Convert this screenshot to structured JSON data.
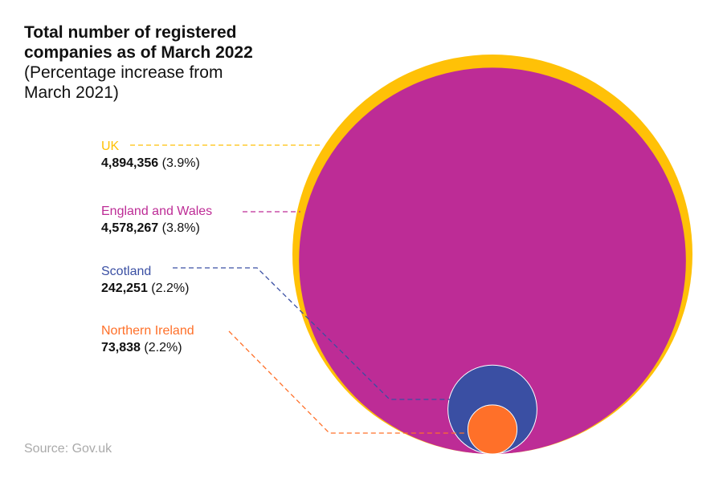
{
  "chart_data": {
    "type": "nested-circles",
    "title": "Total number of registered companies as of March 2022",
    "subtitle": "(Percentage increase from March 2021)",
    "source": "Source: Gov.uk",
    "categories": [
      "UK",
      "England and Wales",
      "Scotland",
      "Northern Ireland"
    ],
    "values": [
      4894356,
      4578267,
      242251,
      73838
    ],
    "value_labels": [
      "4,894,356",
      "4,578,267",
      "242,251",
      "73,838"
    ],
    "changes": [
      3.9,
      3.8,
      2.2,
      2.2
    ],
    "change_labels": [
      "(3.9%)",
      "(3.8%)",
      "(2.2%)",
      "(2.2%)"
    ],
    "colors": [
      "#ffc107",
      "#bd2c96",
      "#3a4fa3",
      "#ff7029"
    ]
  }
}
